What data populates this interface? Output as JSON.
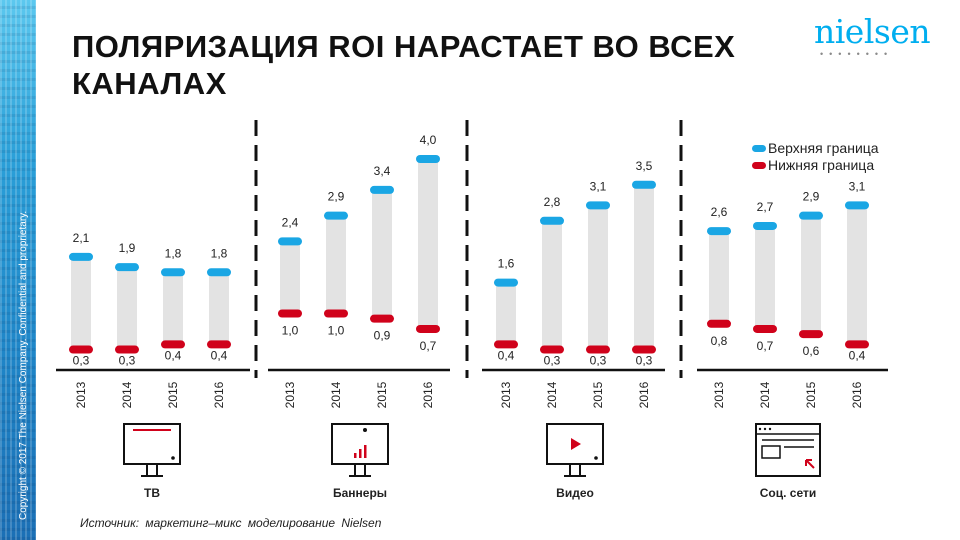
{
  "title": "ПОЛЯРИЗАЦИЯ ROI НАРАСТАЕТ ВО ВСЕХ КАНАЛАХ",
  "logo": "nielsen",
  "sidebar_copyright": "Copyright © 2017 The Nielsen Company. Confidential and proprietary.",
  "source": "Источник: маркетинг–микс моделирование Nielsen",
  "colors": {
    "upper": "#1aa6e4",
    "lower": "#d0021b",
    "range_bar": "#e3e3e3"
  },
  "chart_data": {
    "type": "range_bar",
    "legend": {
      "position": "top-right",
      "upper_label": "Верхняя граница",
      "lower_label": "Нижняя граница"
    },
    "ylim": [
      0,
      4.4
    ],
    "panels": [
      {
        "name": "ТВ",
        "icon": "tv-icon",
        "categories": [
          "2013",
          "2014",
          "2015",
          "2016"
        ],
        "upper": [
          2.1,
          1.9,
          1.8,
          1.8
        ],
        "lower": [
          0.3,
          0.3,
          0.4,
          0.4
        ],
        "upper_labels": [
          "2,1",
          "1,9",
          "1,8",
          "1,8"
        ],
        "lower_labels": [
          "0,3",
          "0,3",
          "0,4",
          "0,4"
        ]
      },
      {
        "name": "Баннеры",
        "icon": "banner-monitor-icon",
        "categories": [
          "2013",
          "2014",
          "2015",
          "2016"
        ],
        "upper": [
          2.4,
          2.9,
          3.4,
          4.0
        ],
        "lower": [
          1.0,
          1.0,
          0.9,
          0.7
        ],
        "upper_labels": [
          "2,4",
          "2,9",
          "3,4",
          "4,0"
        ],
        "lower_labels": [
          "1,0",
          "1,0",
          "0,9",
          "0,7"
        ]
      },
      {
        "name": "Видео",
        "icon": "video-monitor-icon",
        "categories": [
          "2013",
          "2014",
          "2015",
          "2016"
        ],
        "upper": [
          1.6,
          2.8,
          3.1,
          3.5
        ],
        "lower": [
          0.4,
          0.3,
          0.3,
          0.3
        ],
        "upper_labels": [
          "1,6",
          "2,8",
          "3,1",
          "3,5"
        ],
        "lower_labels": [
          "0,4",
          "0,3",
          "0,3",
          "0,3"
        ]
      },
      {
        "name": "Соц. сети",
        "icon": "social-browser-icon",
        "categories": [
          "2013",
          "2014",
          "2015",
          "2016"
        ],
        "upper": [
          2.6,
          2.7,
          2.9,
          3.1
        ],
        "lower": [
          0.8,
          0.7,
          0.6,
          0.4
        ],
        "upper_labels": [
          "2,6",
          "2,7",
          "2,9",
          "3,1"
        ],
        "lower_labels": [
          "0,8",
          "0,7",
          "0,6",
          "0,4"
        ]
      }
    ]
  }
}
